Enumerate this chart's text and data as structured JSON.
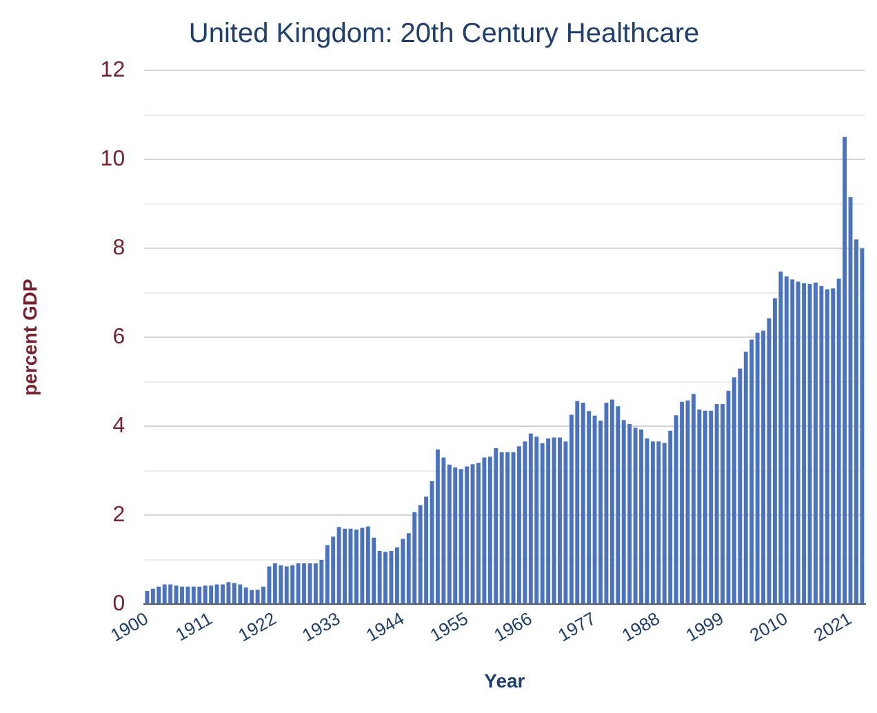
{
  "chart_data": {
    "type": "bar",
    "title": "United Kingdom: 20th Century Healthcare",
    "xlabel": "Year",
    "ylabel": "percent GDP",
    "categories": [
      "1900",
      null,
      null,
      null,
      null,
      null,
      null,
      null,
      null,
      null,
      null,
      "1911",
      null,
      null,
      null,
      null,
      null,
      null,
      null,
      null,
      null,
      null,
      "1922",
      null,
      null,
      null,
      null,
      null,
      null,
      null,
      null,
      null,
      null,
      "1933",
      null,
      null,
      null,
      null,
      null,
      null,
      null,
      null,
      null,
      null,
      "1944",
      null,
      null,
      null,
      null,
      null,
      null,
      null,
      null,
      null,
      null,
      "1955",
      null,
      null,
      null,
      null,
      null,
      null,
      null,
      null,
      null,
      null,
      "1966",
      null,
      null,
      null,
      null,
      null,
      null,
      null,
      null,
      null,
      null,
      "1977",
      null,
      null,
      null,
      null,
      null,
      null,
      null,
      null,
      null,
      null,
      "1988",
      null,
      null,
      null,
      null,
      null,
      null,
      null,
      null,
      null,
      null,
      "1999",
      null,
      null,
      null,
      null,
      null,
      null,
      null,
      null,
      null,
      null,
      "2010",
      null,
      null,
      null,
      null,
      null,
      null,
      null,
      null,
      null,
      null,
      "2021",
      null,
      null
    ],
    "values": [
      0.3,
      0.35,
      0.4,
      0.45,
      0.45,
      0.42,
      0.4,
      0.4,
      0.4,
      0.4,
      0.42,
      0.42,
      0.45,
      0.45,
      0.5,
      0.48,
      0.45,
      0.38,
      0.32,
      0.33,
      0.4,
      0.85,
      0.92,
      0.88,
      0.85,
      0.88,
      0.92,
      0.92,
      0.92,
      0.92,
      1.0,
      1.33,
      1.52,
      1.74,
      1.7,
      1.7,
      1.68,
      1.72,
      1.75,
      1.5,
      1.2,
      1.18,
      1.2,
      1.28,
      1.47,
      1.6,
      2.07,
      2.23,
      2.42,
      2.77,
      3.48,
      3.3,
      3.14,
      3.08,
      3.04,
      3.1,
      3.15,
      3.18,
      3.3,
      3.32,
      3.51,
      3.42,
      3.42,
      3.42,
      3.55,
      3.66,
      3.84,
      3.77,
      3.62,
      3.73,
      3.75,
      3.75,
      3.66,
      4.26,
      4.57,
      4.53,
      4.34,
      4.24,
      4.13,
      4.53,
      4.6,
      4.45,
      4.14,
      4.05,
      3.97,
      3.93,
      3.73,
      3.66,
      3.66,
      3.63,
      3.9,
      4.25,
      4.55,
      4.58,
      4.73,
      4.38,
      4.35,
      4.35,
      4.5,
      4.5,
      4.8,
      5.1,
      5.3,
      5.68,
      5.95,
      6.1,
      6.15,
      6.43,
      6.88,
      7.48,
      7.37,
      7.3,
      7.25,
      7.22,
      7.2,
      7.23,
      7.15,
      7.08,
      7.1,
      7.32,
      10.5,
      9.15,
      8.2,
      8.0
    ],
    "color": "#4a72c4",
    "ylim": [
      0,
      12
    ],
    "yticks": [
      0,
      {
        "value": 1,
        "label": null
      },
      2,
      {
        "value": 3,
        "label": null
      },
      4,
      {
        "value": 5,
        "label": null
      },
      6,
      {
        "value": 7,
        "label": null
      },
      8,
      {
        "value": 9,
        "label": null
      },
      10,
      {
        "value": 11,
        "label": null
      },
      12
    ],
    "grid": "y",
    "legend": false
  }
}
